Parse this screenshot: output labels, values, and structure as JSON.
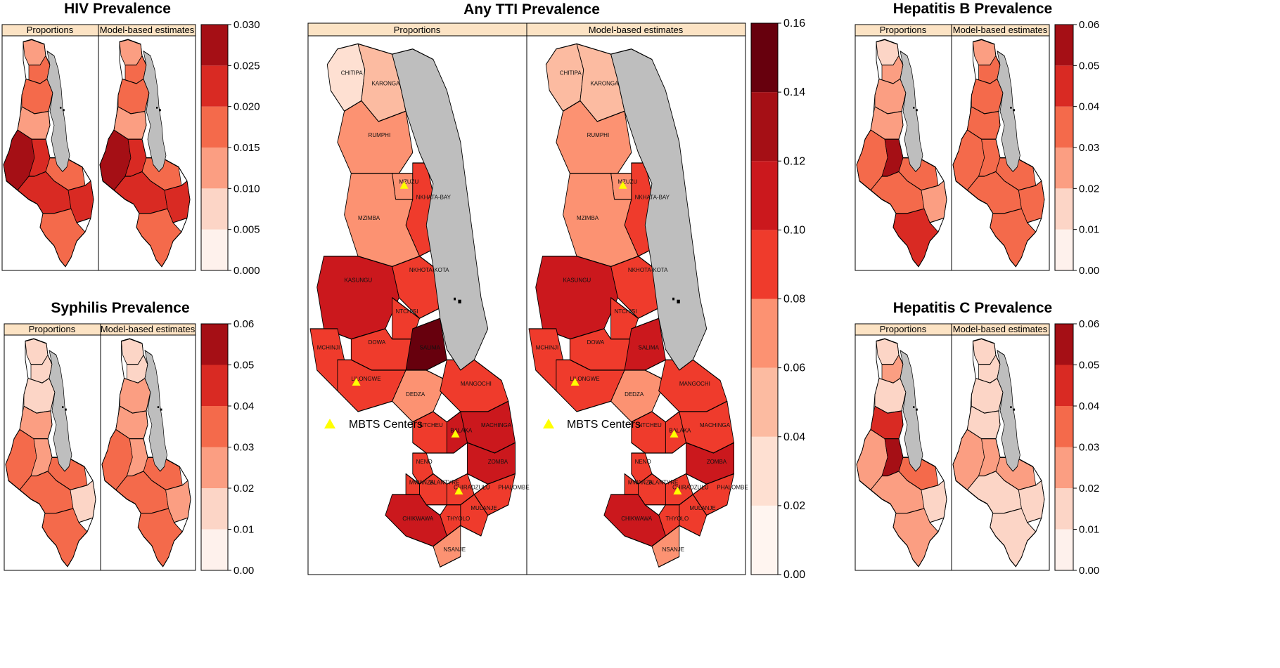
{
  "figure": {
    "strip_labels": [
      "Proportions",
      "Model-based estimates"
    ],
    "legend_label": "MBTS Centers",
    "colors": {
      "strip_fill": "#FCE3C4",
      "lake": "#BEBEBE",
      "border": "#000000",
      "marker": "#FFFF00"
    }
  },
  "panels": [
    {
      "id": "hiv",
      "title": "HIV Prevalence",
      "colorbar": {
        "ticks": [
          "0.000",
          "0.005",
          "0.010",
          "0.015",
          "0.020",
          "0.025",
          "0.030"
        ],
        "colors": [
          "#FEF1EC",
          "#FCD5C6",
          "#FB9E82",
          "#F46A4B",
          "#D92A23",
          "#A50F15"
        ]
      },
      "maps": [
        {
          "fills": [
            "#FB9E82",
            "#F46A4B",
            "#F46A4B",
            "#FB9E82",
            "#A50F15",
            "#D92A23",
            "#F46A4B",
            "#D92A23",
            "#D92A23",
            "#F46A4B"
          ]
        },
        {
          "fills": [
            "#FB9E82",
            "#F46A4B",
            "#F46A4B",
            "#FB9E82",
            "#A50F15",
            "#D92A23",
            "#F46A4B",
            "#D92A23",
            "#D92A23",
            "#F46A4B"
          ]
        }
      ]
    },
    {
      "id": "tti",
      "title": "Any TTI Prevalence",
      "colorbar": {
        "ticks": [
          "0.00",
          "0.02",
          "0.04",
          "0.06",
          "0.08",
          "0.10",
          "0.12",
          "0.14",
          "0.16"
        ],
        "colors": [
          "#FFF5F0",
          "#FEE0D2",
          "#FCBBA1",
          "#FC9272",
          "#EF3B2C",
          "#CB181D",
          "#A50F15",
          "#67000D"
        ]
      },
      "districts": [
        "CHITIPA",
        "KARONGA",
        "RUMPHI",
        "MZUZU",
        "NKHATA-BAY",
        "MZIMBA",
        "NKHOTA-KOTA",
        "KASUNGU",
        "NTCHISI",
        "MCHINJI",
        "DOWA",
        "SALIMA",
        "LILONGWE",
        "DEDZA",
        "MANGOCHI",
        "NTCHEU",
        "BALAKA",
        "MACHINGA",
        "NENO",
        "ZOMBA",
        "MWANZA",
        "BLANTYRE",
        "CHIRADZULU",
        "PHALOMBE",
        "MULANJE",
        "THYOLO",
        "CHIKWAWA",
        "NSANJE"
      ],
      "maps": [
        {
          "fills": [
            "#FEE0D2",
            "#FCBBA1",
            "#FC9272",
            "#FC9272",
            "#EF3B2C",
            "#FC9272",
            "#EF3B2C",
            "#CB181D",
            "#EF3B2C",
            "#EF3B2C",
            "#EF3B2C",
            "#67000D",
            "#EF3B2C",
            "#FC9272",
            "#EF3B2C",
            "#EF3B2C",
            "#CB181D",
            "#CB181D",
            "#EF3B2C",
            "#CB181D",
            "#EF3B2C",
            "#EF3B2C",
            "#EF3B2C",
            "#EF3B2C",
            "#EF3B2C",
            "#EF3B2C",
            "#CB181D",
            "#FC9272"
          ]
        },
        {
          "fills": [
            "#FCBBA1",
            "#FCBBA1",
            "#FC9272",
            "#FC9272",
            "#EF3B2C",
            "#FC9272",
            "#EF3B2C",
            "#CB181D",
            "#EF3B2C",
            "#EF3B2C",
            "#EF3B2C",
            "#CB181D",
            "#EF3B2C",
            "#FC9272",
            "#EF3B2C",
            "#EF3B2C",
            "#EF3B2C",
            "#EF3B2C",
            "#EF3B2C",
            "#CB181D",
            "#EF3B2C",
            "#EF3B2C",
            "#EF3B2C",
            "#EF3B2C",
            "#EF3B2C",
            "#EF3B2C",
            "#CB181D",
            "#FC9272"
          ]
        }
      ]
    },
    {
      "id": "hepb",
      "title": "Hepatitis B Prevalence",
      "colorbar": {
        "ticks": [
          "0.00",
          "0.01",
          "0.02",
          "0.03",
          "0.04",
          "0.05",
          "0.06"
        ],
        "colors": [
          "#FEF1EC",
          "#FCD5C6",
          "#FB9E82",
          "#F46A4B",
          "#D92A23",
          "#A50F15"
        ]
      },
      "maps": [
        {
          "fills": [
            "#FCD5C6",
            "#FB9E82",
            "#FB9E82",
            "#FB9E82",
            "#F46A4B",
            "#A50F15",
            "#F46A4B",
            "#F46A4B",
            "#FB9E82",
            "#D92A23"
          ]
        },
        {
          "fills": [
            "#FB9E82",
            "#F46A4B",
            "#F46A4B",
            "#F46A4B",
            "#F46A4B",
            "#F46A4B",
            "#F46A4B",
            "#F46A4B",
            "#F46A4B",
            "#F46A4B"
          ]
        }
      ]
    },
    {
      "id": "syph",
      "title": "Syphilis Prevalence",
      "colorbar": {
        "ticks": [
          "0.00",
          "0.01",
          "0.02",
          "0.03",
          "0.04",
          "0.05",
          "0.06"
        ],
        "colors": [
          "#FEF1EC",
          "#FCD5C6",
          "#FB9E82",
          "#F46A4B",
          "#D92A23",
          "#A50F15"
        ]
      },
      "maps": [
        {
          "fills": [
            "#FCD5C6",
            "#FCD5C6",
            "#FCD5C6",
            "#FB9E82",
            "#F46A4B",
            "#FB9E82",
            "#F46A4B",
            "#F46A4B",
            "#FCD5C6",
            "#F46A4B"
          ]
        },
        {
          "fills": [
            "#FCD5C6",
            "#FCD5C6",
            "#FB9E82",
            "#FB9E82",
            "#F46A4B",
            "#FB9E82",
            "#F46A4B",
            "#F46A4B",
            "#FB9E82",
            "#F46A4B"
          ]
        }
      ]
    },
    {
      "id": "hepc",
      "title": "Hepatitis C Prevalence",
      "colorbar": {
        "ticks": [
          "0.00",
          "0.01",
          "0.02",
          "0.03",
          "0.04",
          "0.05",
          "0.06"
        ],
        "colors": [
          "#FEF1EC",
          "#FCD5C6",
          "#FB9E82",
          "#F46A4B",
          "#D92A23",
          "#A50F15"
        ]
      },
      "maps": [
        {
          "fills": [
            "#FCD5C6",
            "#FB9E82",
            "#FCD5C6",
            "#D92A23",
            "#FB9E82",
            "#A50F15",
            "#F46A4B",
            "#FB9E82",
            "#FCD5C6",
            "#FB9E82"
          ]
        },
        {
          "fills": [
            "#FCD5C6",
            "#FCD5C6",
            "#FCD5C6",
            "#FCD5C6",
            "#FB9E82",
            "#FB9E82",
            "#FB9E82",
            "#FCD5C6",
            "#FCD5C6",
            "#FCD5C6"
          ]
        }
      ]
    }
  ]
}
